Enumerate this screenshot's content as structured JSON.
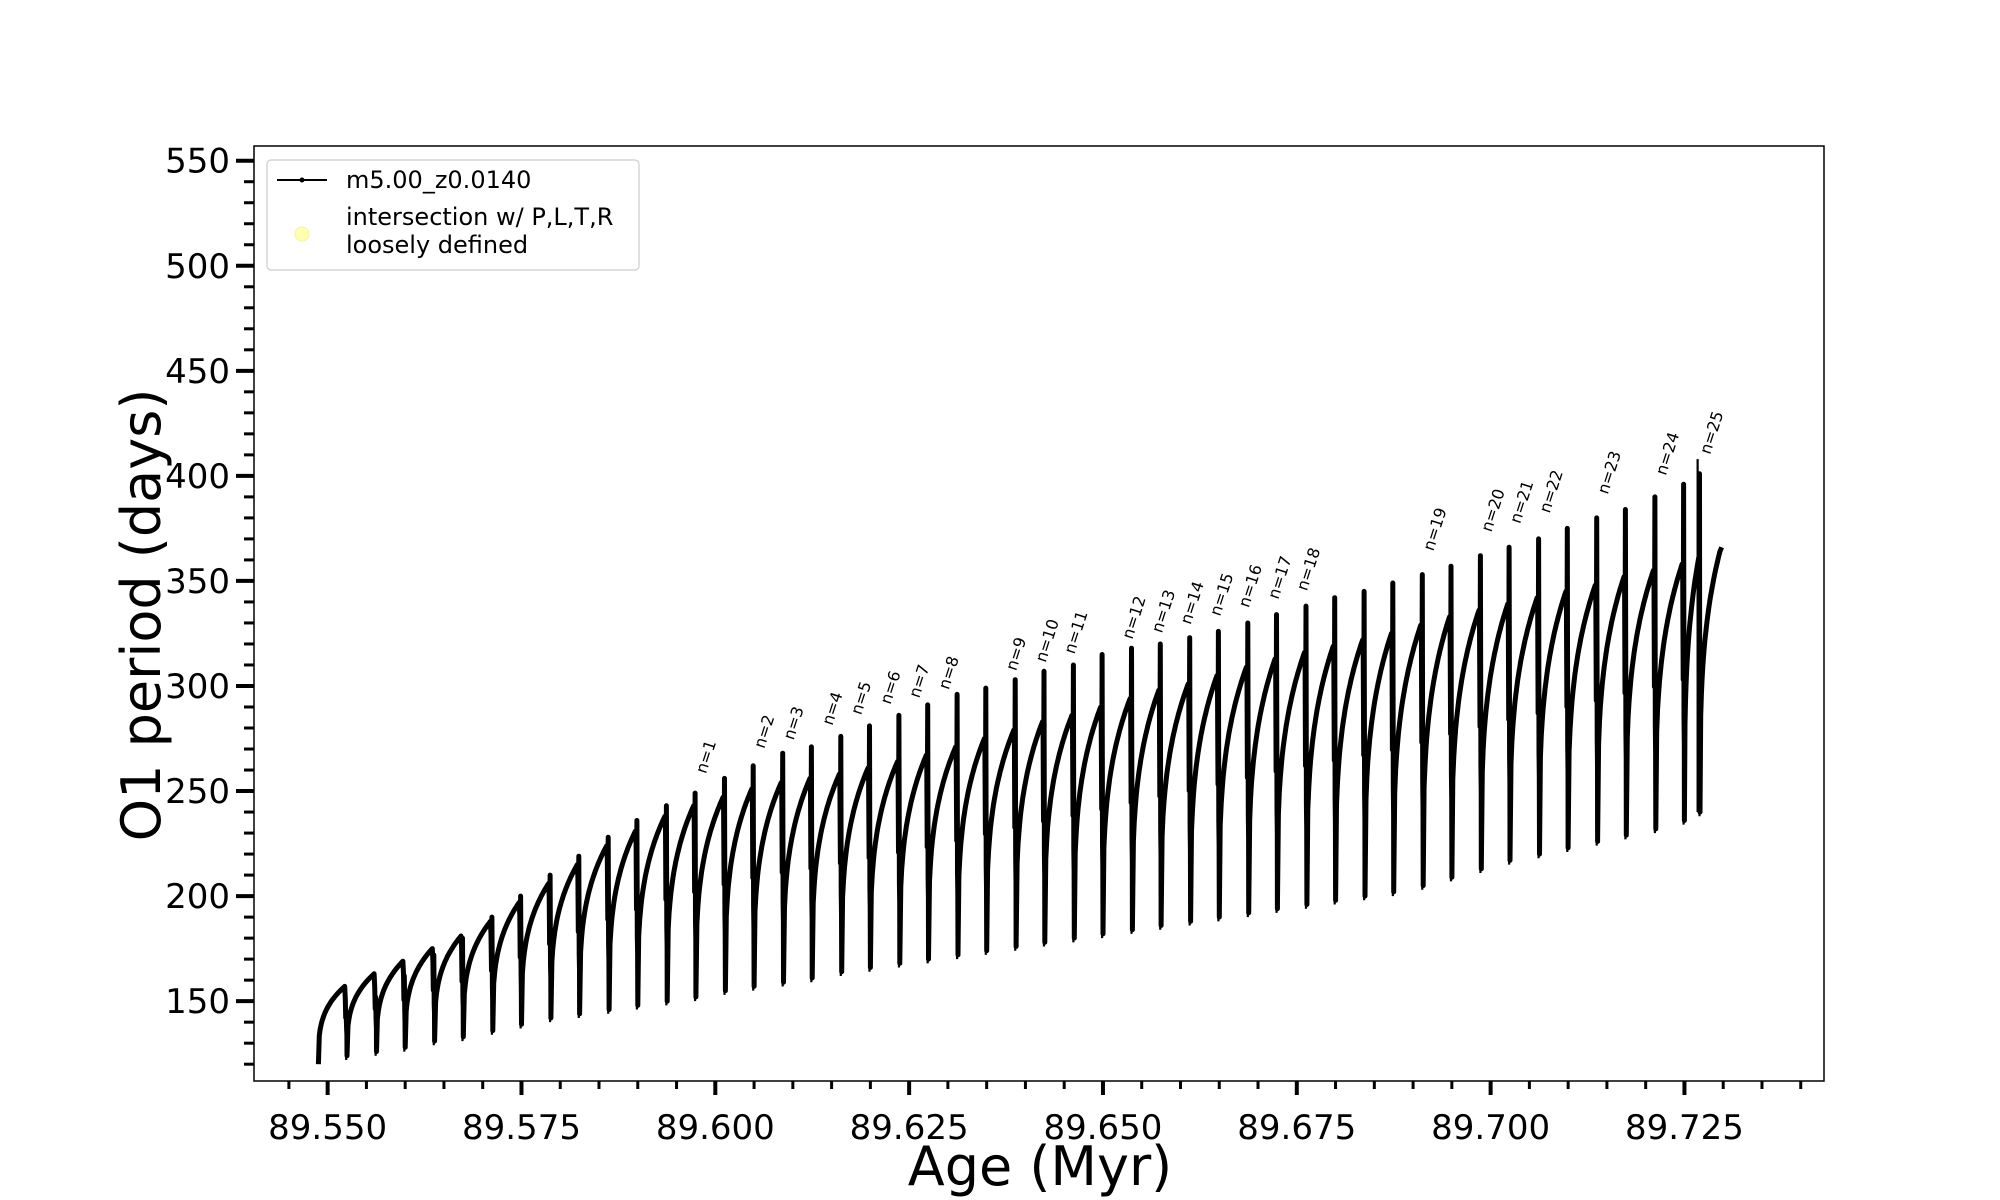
{
  "chart_data": {
    "type": "line",
    "title": "",
    "xlabel": "Age (Myr)",
    "ylabel": "O1 period (days)",
    "xlim": [
      89.5405,
      89.743
    ],
    "ylim": [
      112,
      557
    ],
    "x_ticks": [
      89.55,
      89.575,
      89.6,
      89.625,
      89.65,
      89.675,
      89.7,
      89.725
    ],
    "x_tick_labels": [
      "89.550",
      "89.575",
      "89.600",
      "89.625",
      "89.650",
      "89.675",
      "89.700",
      "89.725"
    ],
    "y_ticks": [
      150,
      200,
      250,
      300,
      350,
      400,
      450,
      500,
      550
    ],
    "y_tick_labels": [
      "150",
      "200",
      "250",
      "300",
      "350",
      "400",
      "450",
      "500",
      "550"
    ],
    "grid": false,
    "legend": {
      "placement": "top-left",
      "entries": [
        {
          "label": "m5.00_z0.0140",
          "marker": "line-dot",
          "color": "#000000"
        },
        {
          "label_lines": [
            "intersection w/ P,L,T,R",
            "loosely defined"
          ],
          "marker": "circle",
          "color": "#ffffb0"
        }
      ]
    },
    "series": [
      {
        "name": "m5.00_z0.0140",
        "color": "#000000",
        "cycle_start_ages": [
          89.5488,
          89.5525,
          89.5563,
          89.56,
          89.5638,
          89.5675,
          89.5713,
          89.575,
          89.5788,
          89.5825,
          89.5863,
          89.59,
          89.5938,
          89.5975,
          89.6013,
          89.605,
          89.6088,
          89.6125,
          89.6163,
          89.62,
          89.6238,
          89.6275,
          89.6313,
          89.635,
          89.6388,
          89.6425,
          89.6463,
          89.65,
          89.6538,
          89.6575,
          89.6613,
          89.665,
          89.6688,
          89.6725,
          89.6763,
          89.68,
          89.6838,
          89.6875,
          89.6913,
          89.695,
          89.6988,
          89.7025,
          89.7063,
          89.71,
          89.7138,
          89.7175,
          89.7213,
          89.725,
          89.727
        ],
        "cycle_min_period": [
          120,
          124,
          126,
          128,
          131,
          133,
          136,
          139,
          142,
          144,
          146,
          148,
          150,
          152,
          155,
          157,
          159,
          161,
          164,
          166,
          168,
          170,
          172,
          174,
          176,
          178,
          180,
          182,
          184,
          186,
          188,
          190,
          192,
          194,
          196,
          198,
          200,
          202,
          205,
          209,
          213,
          217,
          220,
          223,
          226,
          229,
          232,
          236,
          240
        ],
        "cycle_max_period": [
          157,
          163,
          169,
          175,
          181,
          188,
          197,
          206,
          215,
          224,
          231,
          238,
          243,
          247,
          251,
          254,
          256,
          258,
          261,
          264,
          267,
          271,
          275,
          279,
          283,
          286,
          290,
          294,
          298,
          301,
          305,
          309,
          313,
          316,
          319,
          322,
          325,
          329,
          333,
          336,
          339,
          342,
          345,
          348,
          352,
          355,
          358,
          361,
          364
        ],
        "cycle_spike_period": [
          143,
          152,
          162,
          172,
          180,
          190,
          200,
          210,
          219,
          228,
          236,
          243,
          249,
          256,
          262,
          268,
          271,
          276,
          281,
          286,
          291,
          296,
          299,
          303,
          307,
          310,
          315,
          318,
          320,
          323,
          326,
          330,
          334,
          338,
          342,
          345,
          349,
          353,
          357,
          362,
          366,
          370,
          375,
          380,
          384,
          390,
          396,
          401,
          408
        ],
        "end_point": {
          "age": 89.7298,
          "period": 366
        }
      }
    ],
    "annotations": [
      {
        "text": "n=1",
        "age": 89.5975,
        "period": 256
      },
      {
        "text": "n=2",
        "age": 89.605,
        "period": 268
      },
      {
        "text": "n=3",
        "age": 89.6088,
        "period": 272
      },
      {
        "text": "n=4",
        "age": 89.6138,
        "period": 279
      },
      {
        "text": "n=5",
        "age": 89.6175,
        "period": 284
      },
      {
        "text": "n=6",
        "age": 89.6213,
        "period": 289
      },
      {
        "text": "n=7",
        "age": 89.625,
        "period": 292
      },
      {
        "text": "n=8",
        "age": 89.6288,
        "period": 296
      },
      {
        "text": "n=9",
        "age": 89.6375,
        "period": 305
      },
      {
        "text": "n=10",
        "age": 89.6413,
        "period": 309
      },
      {
        "text": "n=11",
        "age": 89.645,
        "period": 313
      },
      {
        "text": "n=12",
        "age": 89.6525,
        "period": 320
      },
      {
        "text": "n=13",
        "age": 89.6563,
        "period": 323
      },
      {
        "text": "n=14",
        "age": 89.66,
        "period": 327
      },
      {
        "text": "n=15",
        "age": 89.6638,
        "period": 331
      },
      {
        "text": "n=16",
        "age": 89.6675,
        "period": 335
      },
      {
        "text": "n=17",
        "age": 89.6713,
        "period": 339
      },
      {
        "text": "n=18",
        "age": 89.675,
        "period": 343
      },
      {
        "text": "n=19",
        "age": 89.6913,
        "period": 362
      },
      {
        "text": "n=20",
        "age": 89.6988,
        "period": 371
      },
      {
        "text": "n=21",
        "age": 89.7025,
        "period": 375
      },
      {
        "text": "n=22",
        "age": 89.7063,
        "period": 380
      },
      {
        "text": "n=23",
        "age": 89.7138,
        "period": 389
      },
      {
        "text": "n=24",
        "age": 89.7213,
        "period": 398
      },
      {
        "text": "n=25",
        "age": 89.727,
        "period": 408
      }
    ]
  }
}
